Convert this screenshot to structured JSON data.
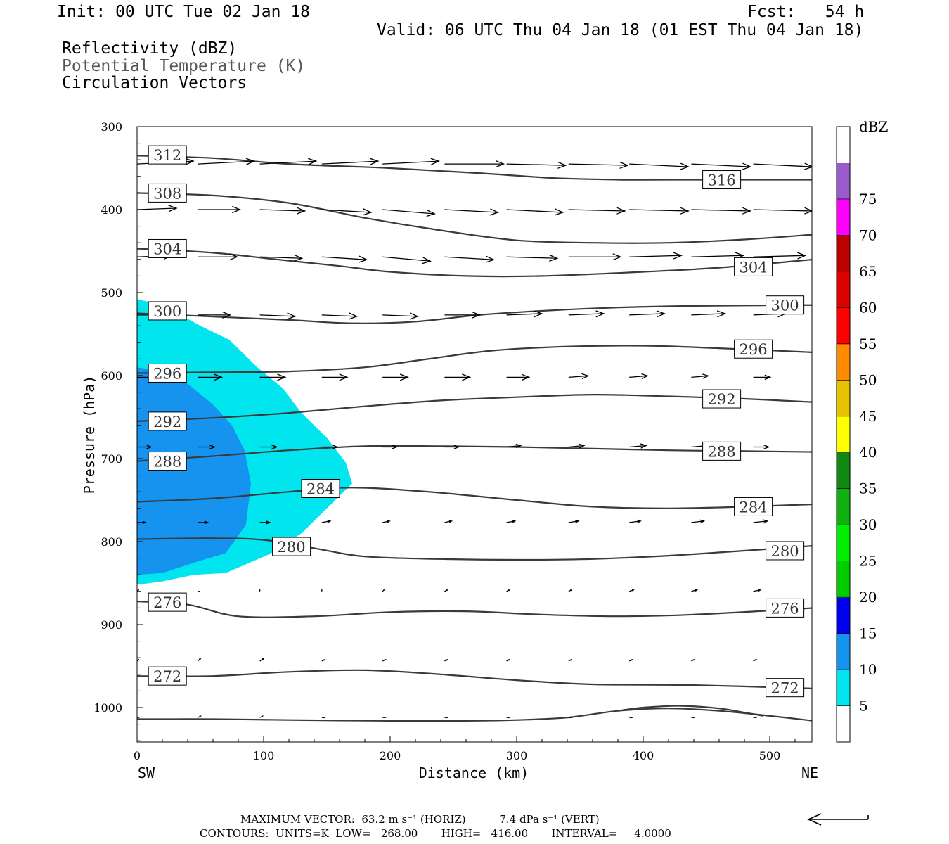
{
  "header": {
    "init": "Init: 00 UTC Tue 02 Jan 18",
    "fcst": "Fcst:   54 h",
    "valid": "Valid: 06 UTC Thu 04 Jan 18 (01 EST Thu 04 Jan 18)",
    "fields": [
      "Reflectivity (dBZ)",
      "Potential Temperature (K)",
      "Circulation Vectors"
    ]
  },
  "chart_data": {
    "type": "cross-section",
    "xlabel": "Distance (km)",
    "ylabel": "Pressure (hPa)",
    "xlim": [
      0,
      535
    ],
    "ylim": [
      300,
      1040
    ],
    "x_ticks": [
      0,
      100,
      200,
      300,
      400,
      500
    ],
    "y_ticks": [
      300,
      400,
      500,
      600,
      700,
      800,
      900,
      1000
    ],
    "x_end_labels": {
      "left": "SW",
      "right": "NE"
    },
    "colorbar": {
      "title": "dBZ",
      "levels": [
        5,
        10,
        15,
        20,
        25,
        30,
        35,
        40,
        45,
        50,
        55,
        60,
        65,
        70,
        75
      ],
      "colors": [
        "#ffffff",
        "#00e5ee",
        "#1593ef",
        "#0000ee",
        "#00cc00",
        "#00ee00",
        "#10b010",
        "#118811",
        "#ffff00",
        "#e6c200",
        "#ff8c00",
        "#ff0000",
        "#dd0000",
        "#bb0000",
        "#ff00ff",
        "#9a5ccd",
        "#ffffff"
      ]
    },
    "reflectivity": [
      {
        "level": 5,
        "color": "#00e5ee",
        "poly": [
          [
            0,
            508
          ],
          [
            20,
            515
          ],
          [
            50,
            540
          ],
          [
            73,
            557
          ],
          [
            95,
            590
          ],
          [
            115,
            615
          ],
          [
            130,
            645
          ],
          [
            150,
            675
          ],
          [
            165,
            705
          ],
          [
            170,
            730
          ],
          [
            150,
            760
          ],
          [
            130,
            790
          ],
          [
            105,
            815
          ],
          [
            70,
            838
          ],
          [
            45,
            840
          ],
          [
            20,
            848
          ],
          [
            0,
            852
          ]
        ]
      },
      {
        "level": 10,
        "color": "#1593ef",
        "poly": [
          [
            0,
            590
          ],
          [
            20,
            595
          ],
          [
            40,
            610
          ],
          [
            60,
            635
          ],
          [
            75,
            660
          ],
          [
            85,
            690
          ],
          [
            90,
            730
          ],
          [
            86,
            780
          ],
          [
            70,
            814
          ],
          [
            50,
            823
          ],
          [
            20,
            838
          ],
          [
            0,
            840
          ]
        ]
      }
    ],
    "theta_contours": [
      {
        "label": "312",
        "points": [
          [
            0,
            335
          ],
          [
            60,
            338
          ],
          [
            120,
            345
          ],
          [
            200,
            350
          ],
          [
            270,
            356
          ],
          [
            330,
            362
          ],
          [
            380,
            364
          ],
          [
            420,
            364
          ],
          [
            535,
            364
          ]
        ]
      },
      {
        "label": "308",
        "points": [
          [
            0,
            380
          ],
          [
            60,
            383
          ],
          [
            120,
            392
          ],
          [
            180,
            410
          ],
          [
            240,
            425
          ],
          [
            300,
            437
          ],
          [
            360,
            440
          ],
          [
            420,
            440
          ],
          [
            480,
            436
          ],
          [
            535,
            430
          ]
        ]
      },
      {
        "label": "304",
        "points": [
          [
            0,
            447
          ],
          [
            60,
            452
          ],
          [
            110,
            460
          ],
          [
            160,
            468
          ],
          [
            200,
            475
          ],
          [
            260,
            480
          ],
          [
            320,
            480
          ],
          [
            400,
            475
          ],
          [
            460,
            470
          ],
          [
            535,
            460
          ]
        ]
      },
      {
        "label": "300",
        "points": [
          [
            0,
            525
          ],
          [
            60,
            529
          ],
          [
            120,
            533
          ],
          [
            170,
            537
          ],
          [
            220,
            535
          ],
          [
            270,
            527
          ],
          [
            320,
            522
          ],
          [
            380,
            518
          ],
          [
            440,
            516
          ],
          [
            535,
            515
          ]
        ]
      },
      {
        "label": "296",
        "points": [
          [
            0,
            597
          ],
          [
            60,
            596
          ],
          [
            120,
            595
          ],
          [
            180,
            590
          ],
          [
            230,
            580
          ],
          [
            280,
            570
          ],
          [
            340,
            565
          ],
          [
            400,
            564
          ],
          [
            460,
            567
          ],
          [
            535,
            572
          ]
        ]
      },
      {
        "label": "292",
        "points": [
          [
            0,
            655
          ],
          [
            60,
            651
          ],
          [
            120,
            645
          ],
          [
            180,
            637
          ],
          [
            240,
            630
          ],
          [
            300,
            626
          ],
          [
            360,
            623
          ],
          [
            420,
            625
          ],
          [
            480,
            628
          ],
          [
            535,
            632
          ]
        ]
      },
      {
        "label": "288",
        "points": [
          [
            0,
            703
          ],
          [
            60,
            697
          ],
          [
            120,
            690
          ],
          [
            180,
            685
          ],
          [
            240,
            685
          ],
          [
            300,
            686
          ],
          [
            360,
            688
          ],
          [
            420,
            690
          ],
          [
            480,
            691
          ],
          [
            535,
            692
          ]
        ]
      },
      {
        "label": "284",
        "points": [
          [
            0,
            752
          ],
          [
            60,
            748
          ],
          [
            120,
            740
          ],
          [
            170,
            735
          ],
          [
            230,
            740
          ],
          [
            300,
            750
          ],
          [
            360,
            758
          ],
          [
            420,
            760
          ],
          [
            480,
            758
          ],
          [
            535,
            755
          ]
        ]
      },
      {
        "label": "280",
        "points": [
          [
            0,
            797
          ],
          [
            60,
            796
          ],
          [
            100,
            798
          ],
          [
            140,
            808
          ],
          [
            180,
            818
          ],
          [
            240,
            821
          ],
          [
            300,
            822
          ],
          [
            360,
            821
          ],
          [
            420,
            817
          ],
          [
            480,
            811
          ],
          [
            535,
            805
          ]
        ]
      },
      {
        "label": "276",
        "points": [
          [
            0,
            872
          ],
          [
            40,
            876
          ],
          [
            80,
            890
          ],
          [
            140,
            890
          ],
          [
            200,
            885
          ],
          [
            260,
            884
          ],
          [
            320,
            888
          ],
          [
            380,
            890
          ],
          [
            440,
            888
          ],
          [
            535,
            880
          ]
        ]
      },
      {
        "label": "272",
        "points": [
          [
            0,
            962
          ],
          [
            60,
            962
          ],
          [
            120,
            957
          ],
          [
            180,
            955
          ],
          [
            240,
            960
          ],
          [
            300,
            967
          ],
          [
            360,
            972
          ],
          [
            440,
            973
          ],
          [
            535,
            977
          ]
        ]
      },
      {
        "label": "",
        "points": [
          [
            0,
            1014
          ],
          [
            60,
            1014
          ],
          [
            120,
            1015
          ],
          [
            200,
            1016
          ],
          [
            260,
            1016
          ],
          [
            300,
            1015
          ],
          [
            340,
            1012
          ],
          [
            380,
            1004
          ],
          [
            420,
            1001
          ],
          [
            460,
            1004
          ],
          [
            500,
            1010
          ],
          [
            535,
            1016
          ]
        ]
      },
      {
        "label": "",
        "points": [
          [
            380,
            1004
          ],
          [
            400,
            1000
          ],
          [
            430,
            998
          ],
          [
            460,
            1001
          ],
          [
            480,
            1006
          ],
          [
            495,
            1010
          ]
        ]
      }
    ],
    "theta_label_positions": [
      {
        "label": "312",
        "x": 24,
        "p": 334
      },
      {
        "label": "316",
        "x": 462,
        "p": 364
      },
      {
        "label": "308",
        "x": 24,
        "p": 380
      },
      {
        "label": "304",
        "x": 24,
        "p": 447
      },
      {
        "label": "304",
        "x": 487,
        "p": 469
      },
      {
        "label": "300",
        "x": 24,
        "p": 522
      },
      {
        "label": "300",
        "x": 512,
        "p": 515
      },
      {
        "label": "296",
        "x": 24,
        "p": 597
      },
      {
        "label": "296",
        "x": 487,
        "p": 568
      },
      {
        "label": "292",
        "x": 24,
        "p": 655
      },
      {
        "label": "292",
        "x": 462,
        "p": 628
      },
      {
        "label": "288",
        "x": 24,
        "p": 703
      },
      {
        "label": "288",
        "x": 462,
        "p": 691
      },
      {
        "label": "284",
        "x": 145,
        "p": 736
      },
      {
        "label": "284",
        "x": 487,
        "p": 758
      },
      {
        "label": "280",
        "x": 122,
        "p": 806
      },
      {
        "label": "280",
        "x": 512,
        "p": 811
      },
      {
        "label": "276",
        "x": 24,
        "p": 873
      },
      {
        "label": "276",
        "x": 512,
        "p": 880
      },
      {
        "label": "272",
        "x": 24,
        "p": 962
      },
      {
        "label": "272",
        "x": 512,
        "p": 976
      }
    ],
    "vectors": {
      "x": [
        0,
        48,
        97,
        146,
        194,
        243,
        292,
        341,
        389,
        438,
        487,
        535
      ],
      "levels": [
        {
          "p": 345,
          "u": [
            40,
            40,
            40,
            40,
            40,
            42,
            42,
            42,
            42,
            42,
            42,
            42
          ],
          "w": [
            2,
            2,
            2,
            2,
            2,
            0,
            -1,
            -1,
            -2,
            -2,
            -2,
            -2
          ]
        },
        {
          "p": 400,
          "u": [
            28,
            30,
            32,
            35,
            37,
            38,
            40,
            40,
            42,
            42,
            42,
            40
          ],
          "w": [
            1,
            0,
            -1,
            -2,
            -3,
            -2,
            -2,
            -1,
            -1,
            -1,
            -1,
            0
          ]
        },
        {
          "p": 457,
          "u": [
            25,
            28,
            30,
            32,
            34,
            35,
            36,
            37,
            37,
            37,
            37,
            36
          ],
          "w": [
            1,
            0,
            -1,
            -2,
            -3,
            -2,
            -1,
            0,
            1,
            1,
            1,
            0
          ]
        },
        {
          "p": 527,
          "u": [
            20,
            23,
            25,
            25,
            25,
            25,
            25,
            25,
            25,
            24,
            23,
            22
          ],
          "w": [
            0,
            0,
            -1,
            -1,
            -1,
            0,
            1,
            1,
            1,
            1,
            1,
            0
          ]
        },
        {
          "p": 602,
          "u": [
            15,
            17,
            18,
            18,
            18,
            18,
            16,
            14,
            13,
            12,
            12,
            11
          ],
          "w": [
            0,
            0,
            0,
            0,
            0,
            0,
            0,
            1,
            1,
            1,
            0,
            0
          ]
        },
        {
          "p": 686,
          "u": [
            10,
            12,
            12,
            11,
            10,
            10,
            10,
            11,
            12,
            12,
            11,
            10
          ],
          "w": [
            0,
            0,
            0,
            0,
            0,
            0,
            1,
            1,
            1,
            1,
            0,
            0
          ]
        },
        {
          "p": 777,
          "u": [
            6,
            7,
            7,
            6,
            5,
            5,
            6,
            7,
            8,
            9,
            10,
            10
          ],
          "w": [
            0,
            0,
            0,
            1,
            1,
            1,
            1,
            1,
            1,
            1,
            1,
            0
          ]
        },
        {
          "p": 860,
          "u": [
            1,
            1,
            0,
            0,
            1,
            2,
            2,
            2,
            3,
            4,
            5,
            5
          ],
          "w": [
            1,
            0,
            1,
            1,
            1,
            1,
            1,
            1,
            1,
            1,
            1,
            0
          ]
        },
        {
          "p": 944,
          "u": [
            1,
            2,
            3,
            2,
            2,
            2,
            2,
            2,
            2,
            2,
            2,
            2
          ],
          "w": [
            1,
            2,
            2,
            1,
            1,
            1,
            1,
            1,
            1,
            1,
            1,
            1
          ]
        },
        {
          "p": 1012,
          "u": [
            1,
            2,
            2,
            2,
            2,
            2,
            2,
            2,
            2,
            2,
            2,
            2
          ],
          "w": [
            0,
            1,
            1,
            0,
            0,
            0,
            0,
            0,
            0,
            0,
            0,
            0
          ]
        }
      ]
    }
  },
  "footer": {
    "max_vector": "MAXIMUM VECTOR:  63.2 m s⁻¹ (HORIZ)          7.4 dPa s⁻¹ (VERT)",
    "contours": "CONTOURS:  UNITS=K  LOW=   268.00       HIGH=   416.00       INTERVAL=     4.0000"
  }
}
